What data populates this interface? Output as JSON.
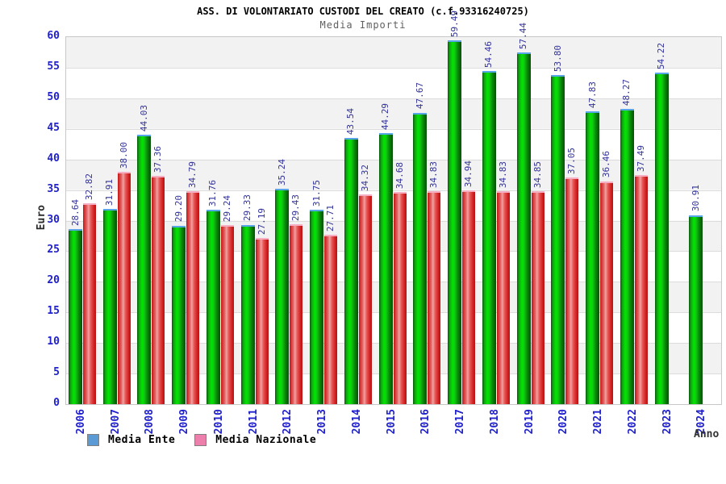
{
  "chart_data": {
    "type": "bar",
    "title": "ASS. DI VOLONTARIATO CUSTODI DEL CREATO (c.f.93316240725)",
    "subtitle": "Media Importi",
    "xlabel": "Anno",
    "ylabel": "Euro",
    "ylim": [
      0,
      60
    ],
    "ytick_step": 5,
    "grid": "horizontal-bands",
    "legend_position": "bottom-left",
    "categories": [
      "2006",
      "2007",
      "2008",
      "2009",
      "2010",
      "2011",
      "2012",
      "2013",
      "2014",
      "2015",
      "2016",
      "2017",
      "2018",
      "2019",
      "2020",
      "2021",
      "2022",
      "2023",
      "2024"
    ],
    "series": [
      {
        "name": "Media Ente",
        "legend_color": "#5b9bd5",
        "bar_color": "#00e600",
        "values": [
          28.64,
          31.91,
          44.03,
          29.2,
          31.76,
          29.33,
          35.24,
          31.75,
          43.54,
          44.29,
          47.67,
          59.49,
          54.46,
          57.44,
          53.8,
          47.83,
          48.27,
          54.22,
          30.91
        ]
      },
      {
        "name": "Media Nazionale",
        "legend_color": "#ee7fac",
        "bar_color": "#e85555",
        "values": [
          32.82,
          38.0,
          37.36,
          34.79,
          29.24,
          27.19,
          29.43,
          27.71,
          34.32,
          34.68,
          34.83,
          34.94,
          34.83,
          34.85,
          37.05,
          36.46,
          37.49,
          null,
          null
        ]
      }
    ]
  },
  "colors": {
    "value_label": "#333399",
    "axis_tick": "#2020cc",
    "band_gray": "#f2f2f2",
    "gridline": "#dcdcdc",
    "green_bar_top_edge": "#58a5e8",
    "red_bar_top_edge": "#f6afc2"
  }
}
